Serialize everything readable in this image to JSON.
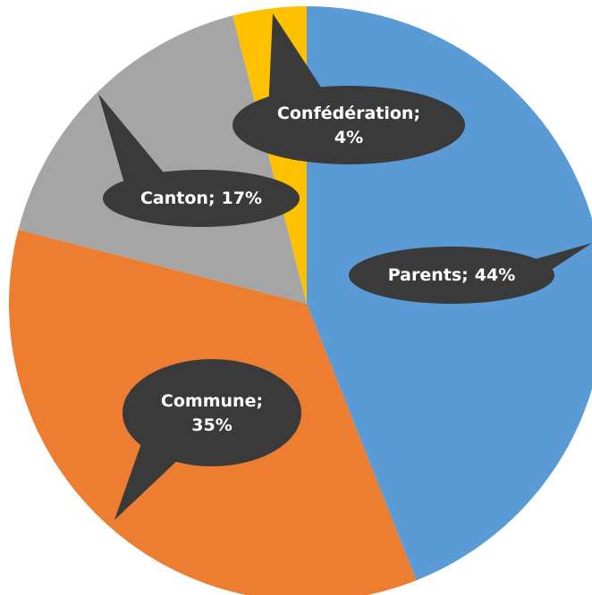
{
  "chart_data": {
    "type": "pie",
    "categories": [
      "Parents",
      "Commune",
      "Canton",
      "Confédération"
    ],
    "values": [
      44,
      35,
      17,
      4
    ],
    "value_labels": [
      "44%",
      "35%",
      "17%",
      "4%"
    ],
    "label_separator": ";",
    "colors": [
      "#5b9bd5",
      "#ed7d31",
      "#a5a5a5",
      "#ffc000"
    ]
  }
}
